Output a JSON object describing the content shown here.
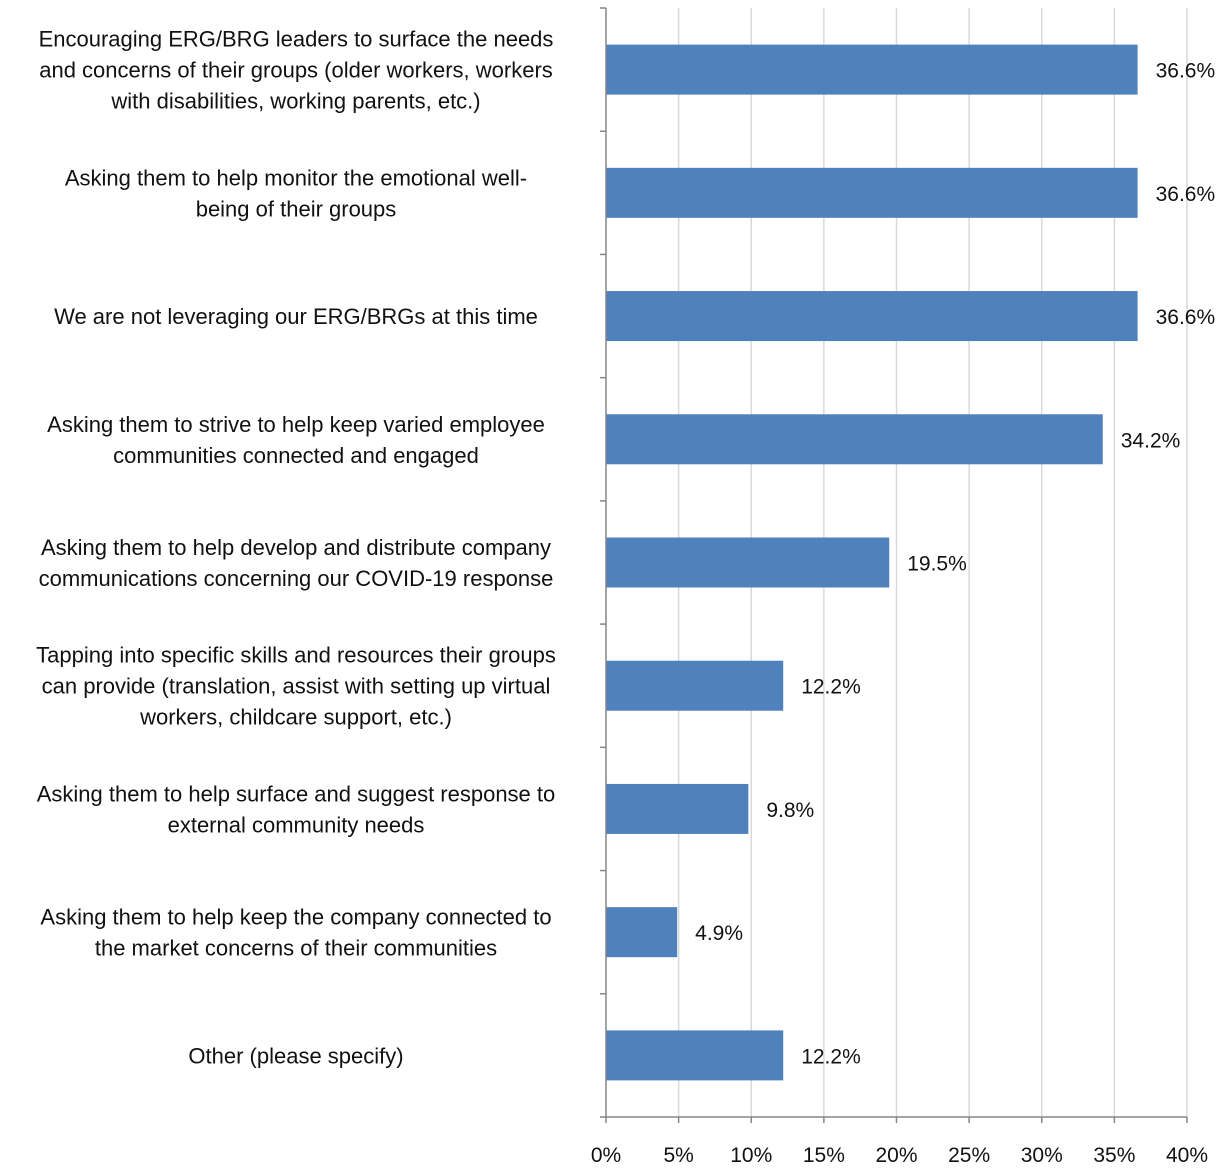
{
  "chart_data": {
    "type": "bar",
    "orientation": "horizontal",
    "categories": [
      [
        "Encouraging ERG/BRG leaders to surface the needs",
        "and concerns of their groups (older workers, workers",
        "with disabilities, working parents, etc.)"
      ],
      [
        "Asking them to help monitor the emotional well-",
        "being of their groups"
      ],
      [
        "We are not leveraging our ERG/BRGs at this time"
      ],
      [
        "Asking them to strive to help keep varied employee",
        "communities connected and engaged"
      ],
      [
        "Asking them to help develop and distribute company",
        "communications concerning our COVID-19 response"
      ],
      [
        "Tapping into specific skills and resources their groups",
        "can provide (translation, assist with setting up virtual",
        "workers, childcare support, etc.)"
      ],
      [
        "Asking them to help surface and suggest response to",
        "external community needs"
      ],
      [
        "Asking them to help keep the company connected to",
        "the market concerns of their communities"
      ],
      [
        "Other (please specify)"
      ]
    ],
    "values": [
      36.6,
      36.6,
      36.6,
      34.2,
      19.5,
      12.2,
      9.8,
      4.9,
      12.2
    ],
    "value_labels": [
      "36.6%",
      "36.6%",
      "36.6%",
      "34.2%",
      "19.5%",
      "12.2%",
      "9.8%",
      "4.9%",
      "12.2%"
    ],
    "xlim": [
      0,
      40
    ],
    "x_ticks": [
      0,
      5,
      10,
      15,
      20,
      25,
      30,
      35,
      40
    ],
    "x_tick_labels": [
      "0%",
      "5%",
      "10%",
      "15%",
      "20%",
      "25%",
      "30%",
      "35%",
      "40%"
    ],
    "title": "",
    "xlabel": "",
    "ylabel": "",
    "grid": "vertical",
    "legend": "none",
    "colors": {
      "bar": "#4F81BD",
      "grid": "#D9D9D9",
      "axis": "#868686",
      "text": "#111111"
    }
  }
}
